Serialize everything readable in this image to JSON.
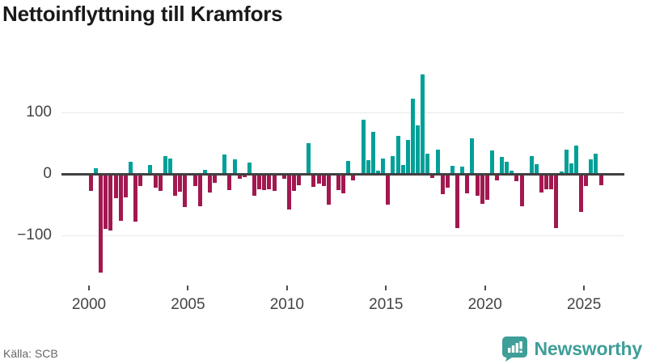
{
  "header": {
    "title": "Nettoinflyttning till Kramfors"
  },
  "footer": {
    "source_label": "Källa: SCB",
    "logo_text": "Newsworthy",
    "logo_icon": "newsworthy-speech-bubble-bar-chart-icon"
  },
  "colors": {
    "positive_bar": "#00A099",
    "negative_bar": "#A21850",
    "zero_line": "#404040",
    "gridline": "#E8E8E8",
    "axis_text": "#444444",
    "tick_mark": "#4D4D4D",
    "title_text": "#1A1A1A",
    "source_text": "#666666",
    "logo_teal": "#3E9E98",
    "background": "#FFFFFF"
  },
  "chart_data": {
    "type": "bar",
    "title": "Nettoinflyttning till Kramfors",
    "frequency": "quarterly",
    "x_start": "2000-Q1",
    "x_end": "2025-Q4",
    "grid": "horizontal",
    "legend": "none",
    "ylim": [
      -175,
      185
    ],
    "yticks": [
      -100,
      0,
      100
    ],
    "ytick_labels": [
      "−100",
      "0",
      "100"
    ],
    "xticks": [
      2000,
      2005,
      2010,
      2015,
      2020,
      2025
    ],
    "xtick_labels": [
      "2000",
      "2005",
      "2010",
      "2015",
      "2020",
      "2025"
    ],
    "categories": [
      "2000-Q1",
      "2000-Q2",
      "2000-Q3",
      "2000-Q4",
      "2001-Q1",
      "2001-Q2",
      "2001-Q3",
      "2001-Q4",
      "2002-Q1",
      "2002-Q2",
      "2002-Q3",
      "2002-Q4",
      "2003-Q1",
      "2003-Q2",
      "2003-Q3",
      "2003-Q4",
      "2004-Q1",
      "2004-Q2",
      "2004-Q3",
      "2004-Q4",
      "2005-Q1",
      "2005-Q2",
      "2005-Q3",
      "2005-Q4",
      "2006-Q1",
      "2006-Q2",
      "2006-Q3",
      "2006-Q4",
      "2007-Q1",
      "2007-Q2",
      "2007-Q3",
      "2007-Q4",
      "2008-Q1",
      "2008-Q2",
      "2008-Q3",
      "2008-Q4",
      "2009-Q1",
      "2009-Q2",
      "2009-Q3",
      "2009-Q4",
      "2010-Q1",
      "2010-Q2",
      "2010-Q3",
      "2010-Q4",
      "2011-Q1",
      "2011-Q2",
      "2011-Q3",
      "2011-Q4",
      "2012-Q1",
      "2012-Q2",
      "2012-Q3",
      "2012-Q4",
      "2013-Q1",
      "2013-Q2",
      "2013-Q3",
      "2013-Q4",
      "2014-Q1",
      "2014-Q2",
      "2014-Q3",
      "2014-Q4",
      "2015-Q1",
      "2015-Q2",
      "2015-Q3",
      "2015-Q4",
      "2016-Q1",
      "2016-Q2",
      "2016-Q3",
      "2016-Q4",
      "2017-Q1",
      "2017-Q2",
      "2017-Q3",
      "2017-Q4",
      "2018-Q1",
      "2018-Q2",
      "2018-Q3",
      "2018-Q4",
      "2019-Q1",
      "2019-Q2",
      "2019-Q3",
      "2019-Q4",
      "2020-Q1",
      "2020-Q2",
      "2020-Q3",
      "2020-Q4",
      "2021-Q1",
      "2021-Q2",
      "2021-Q3",
      "2021-Q4",
      "2022-Q1",
      "2022-Q2",
      "2022-Q3",
      "2022-Q4",
      "2023-Q1",
      "2023-Q2",
      "2023-Q3",
      "2023-Q4",
      "2024-Q1",
      "2024-Q2",
      "2024-Q3",
      "2024-Q4",
      "2025-Q1",
      "2025-Q2",
      "2025-Q3",
      "2025-Q4"
    ],
    "values": [
      -28,
      9,
      -160,
      -90,
      -92,
      -39,
      -76,
      -38,
      20,
      -78,
      -20,
      0,
      15,
      -22,
      -28,
      29,
      25,
      -35,
      -29,
      -54,
      0,
      -20,
      -52,
      7,
      -30,
      -15,
      0,
      31,
      -26,
      24,
      -8,
      -5,
      18,
      -35,
      -25,
      -26,
      -25,
      -28,
      0,
      -8,
      -58,
      -28,
      -19,
      0,
      50,
      -21,
      -16,
      -20,
      -50,
      0,
      -26,
      -32,
      21,
      -10,
      0,
      88,
      22,
      69,
      5,
      25,
      -50,
      29,
      62,
      14,
      55,
      123,
      79,
      162,
      33,
      -6,
      39,
      -33,
      -23,
      13,
      -88,
      12,
      -32,
      58,
      -36,
      -49,
      -42,
      38,
      -11,
      28,
      20,
      5,
      -12,
      -52,
      -3,
      29,
      16,
      -30,
      -25,
      -25,
      -88,
      4,
      39,
      17,
      46,
      -62,
      -20,
      24,
      33,
      -18
    ]
  }
}
